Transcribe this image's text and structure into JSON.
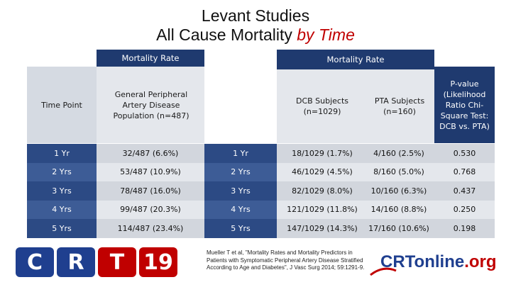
{
  "title": {
    "line1": "Levant Studies",
    "line2_main": "All Cause Mortality ",
    "line2_accent": "by Time"
  },
  "left_table": {
    "band_label": "Mortality Rate",
    "col_time_header": "Time Point",
    "col_pop_header": "General Peripheral Artery Disease Population (n=487)",
    "rows": [
      {
        "time": "1 Yr",
        "value": "32/487 (6.6%)"
      },
      {
        "time": "2 Yrs",
        "value": "53/487 (10.9%)"
      },
      {
        "time": "3 Yrs",
        "value": "78/487 (16.0%)"
      },
      {
        "time": "4 Yrs",
        "value": "99/487 (20.3%)"
      },
      {
        "time": "5 Yrs",
        "value": "114/487 (23.4%)"
      }
    ]
  },
  "right_table": {
    "band_label": "Mortality Rate",
    "col_dcb_header": "DCB Subjects (n=1029)",
    "col_pta_header": "PTA Subjects (n=160)",
    "col_p_header": "P-value (Likelihood Ratio Chi-Square Test: DCB vs. PTA)",
    "rows": [
      {
        "time": "1 Yr",
        "dcb": "18/1029 (1.7%)",
        "pta": "4/160 (2.5%)",
        "p": "0.530"
      },
      {
        "time": "2 Yrs",
        "dcb": "46/1029 (4.5%)",
        "pta": "8/160 (5.0%)",
        "p": "0.768"
      },
      {
        "time": "3 Yrs",
        "dcb": "82/1029 (8.0%)",
        "pta": "10/160 (6.3%)",
        "p": "0.437"
      },
      {
        "time": "4 Yrs",
        "dcb": "121/1029 (11.8%)",
        "pta": "14/160 (8.8%)",
        "p": "0.250"
      },
      {
        "time": "5 Yrs",
        "dcb": "147/1029 (14.3%)",
        "pta": "17/160 (10.6%)",
        "p": "0.198"
      }
    ]
  },
  "footer": {
    "logo_letters": [
      "C",
      "R",
      "T",
      "19"
    ],
    "citation": "Mueller T et al, \"Mortality Rates and Mortality Predictors in Patients with Symptomatic Peripheral Artery Disease Stratified According to Age and Diabetes\", J Vasc Surg 2014; 59:1291-9.",
    "online_logo_main": "CRTonline",
    "online_logo_suffix": ".org"
  },
  "colors": {
    "header_blue": "#1f3a6f",
    "row_blue_dark": "#2c4a84",
    "row_blue_light": "#3d5c96",
    "row_grey_dark": "#d2d6dd",
    "row_grey_light": "#e4e7ec",
    "title_accent": "#c00000"
  }
}
